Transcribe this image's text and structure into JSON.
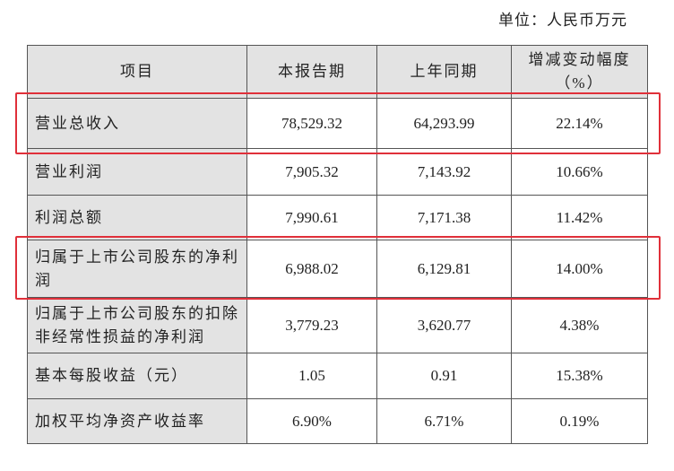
{
  "header": {
    "unit": "单位：人民币万元"
  },
  "table": {
    "columns": [
      "项目",
      "本报告期",
      "上年同期",
      "增减变动幅度（%）"
    ],
    "rows": [
      [
        "营业总收入",
        "78,529.32",
        "64,293.99",
        "22.14%"
      ],
      [
        "营业利润",
        "7,905.32",
        "7,143.92",
        "10.66%"
      ],
      [
        "利润总额",
        "7,990.61",
        "7,171.38",
        "11.42%"
      ],
      [
        "归属于上市公司股东的净利润",
        "6,988.02",
        "6,129.81",
        "14.00%"
      ],
      [
        "归属于上市公司股东的扣除非经常性损益的净利润",
        "3,779.23",
        "3,620.77",
        "4.38%"
      ],
      [
        "基本每股收益（元）",
        "1.05",
        "0.91",
        "15.38%"
      ],
      [
        "加权平均净资产收益率",
        "6.90%",
        "6.71%",
        "0.19%"
      ]
    ]
  }
}
